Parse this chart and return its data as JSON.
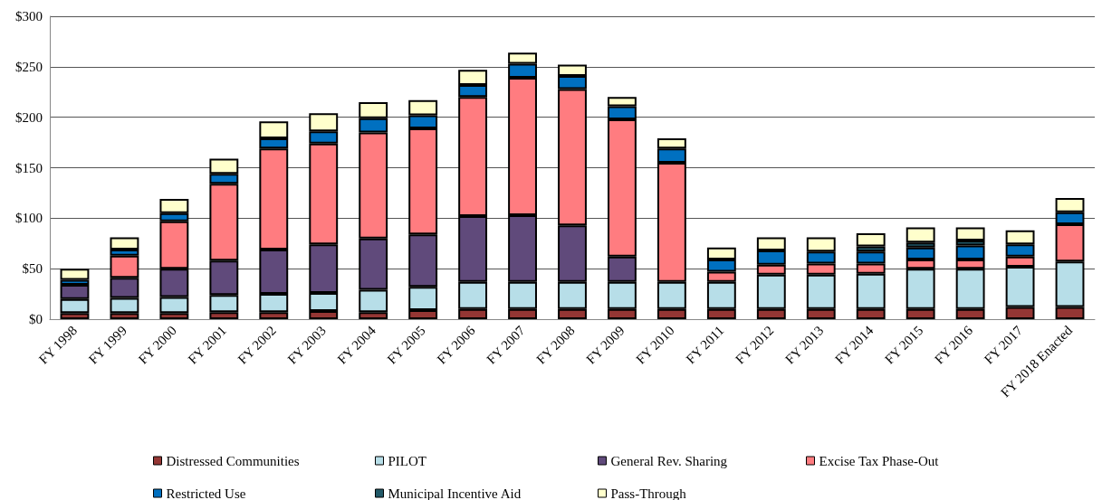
{
  "chart_data": {
    "type": "bar",
    "stacked": true,
    "categories": [
      "FY 1998",
      "FY 1999",
      "FY 2000",
      "FY 2001",
      "FY 2002",
      "FY 2003",
      "FY 2004",
      "FY 2005",
      "FY 2006",
      "FY 2007",
      "FY 2008",
      "FY 2009",
      "FY 2010",
      "FY 2011",
      "FY 2012",
      "FY 2013",
      "FY 2014",
      "FY 2015",
      "FY 2016",
      "FY 2017",
      "FY 2018 Enacted"
    ],
    "series": [
      {
        "name": "Distressed Communities",
        "color": "#943634",
        "values": [
          6,
          6,
          6,
          7,
          7,
          8,
          7,
          9,
          10,
          10,
          10,
          10,
          10,
          10,
          10,
          10,
          10,
          10,
          10,
          12,
          12
        ]
      },
      {
        "name": "PILOT",
        "color": "#b7dee8",
        "values": [
          14,
          15,
          16,
          17,
          18,
          18,
          22,
          23,
          27,
          27,
          27,
          27,
          27,
          27,
          34,
          34,
          35,
          40,
          40,
          40,
          45
        ]
      },
      {
        "name": "General Rev. Sharing",
        "color": "#604a7b",
        "values": [
          14,
          20,
          28,
          34,
          44,
          48,
          51,
          52,
          65,
          66,
          56,
          25,
          0,
          0,
          0,
          0,
          0,
          0,
          0,
          0,
          0
        ]
      },
      {
        "name": "Excise Tax Phase-Out",
        "color": "#ff7c80",
        "values": [
          0,
          22,
          47,
          76,
          100,
          100,
          105,
          105,
          118,
          136,
          135,
          136,
          118,
          10,
          10,
          11,
          10,
          9,
          9,
          10,
          37
        ]
      },
      {
        "name": "Restricted Use",
        "color": "#0070c0",
        "values": [
          5,
          6,
          8,
          10,
          10,
          12,
          14,
          13,
          12,
          14,
          13,
          13,
          14,
          12,
          14,
          12,
          12,
          12,
          14,
          12,
          12
        ]
      },
      {
        "name": "Municipal Incentive Aid",
        "color": "#215968",
        "values": [
          0,
          0,
          0,
          0,
          0,
          0,
          0,
          0,
          0,
          0,
          0,
          0,
          0,
          0,
          0,
          0,
          5,
          5,
          5,
          0,
          0
        ]
      },
      {
        "name": "Pass-Through",
        "color": "#ffffcc",
        "values": [
          11,
          12,
          14,
          15,
          17,
          18,
          16,
          15,
          15,
          11,
          11,
          9,
          10,
          12,
          13,
          14,
          13,
          15,
          13,
          14,
          14
        ]
      }
    ],
    "ylim": [
      0,
      300
    ],
    "yticks": [
      {
        "value": 0,
        "label": "$0"
      },
      {
        "value": 50,
        "label": "$50"
      },
      {
        "value": 100,
        "label": "$100"
      },
      {
        "value": 150,
        "label": "$150"
      },
      {
        "value": 200,
        "label": "$200"
      },
      {
        "value": 250,
        "label": "$250"
      },
      {
        "value": 300,
        "label": "$300"
      }
    ],
    "grid": "y",
    "legend": "bottom"
  }
}
